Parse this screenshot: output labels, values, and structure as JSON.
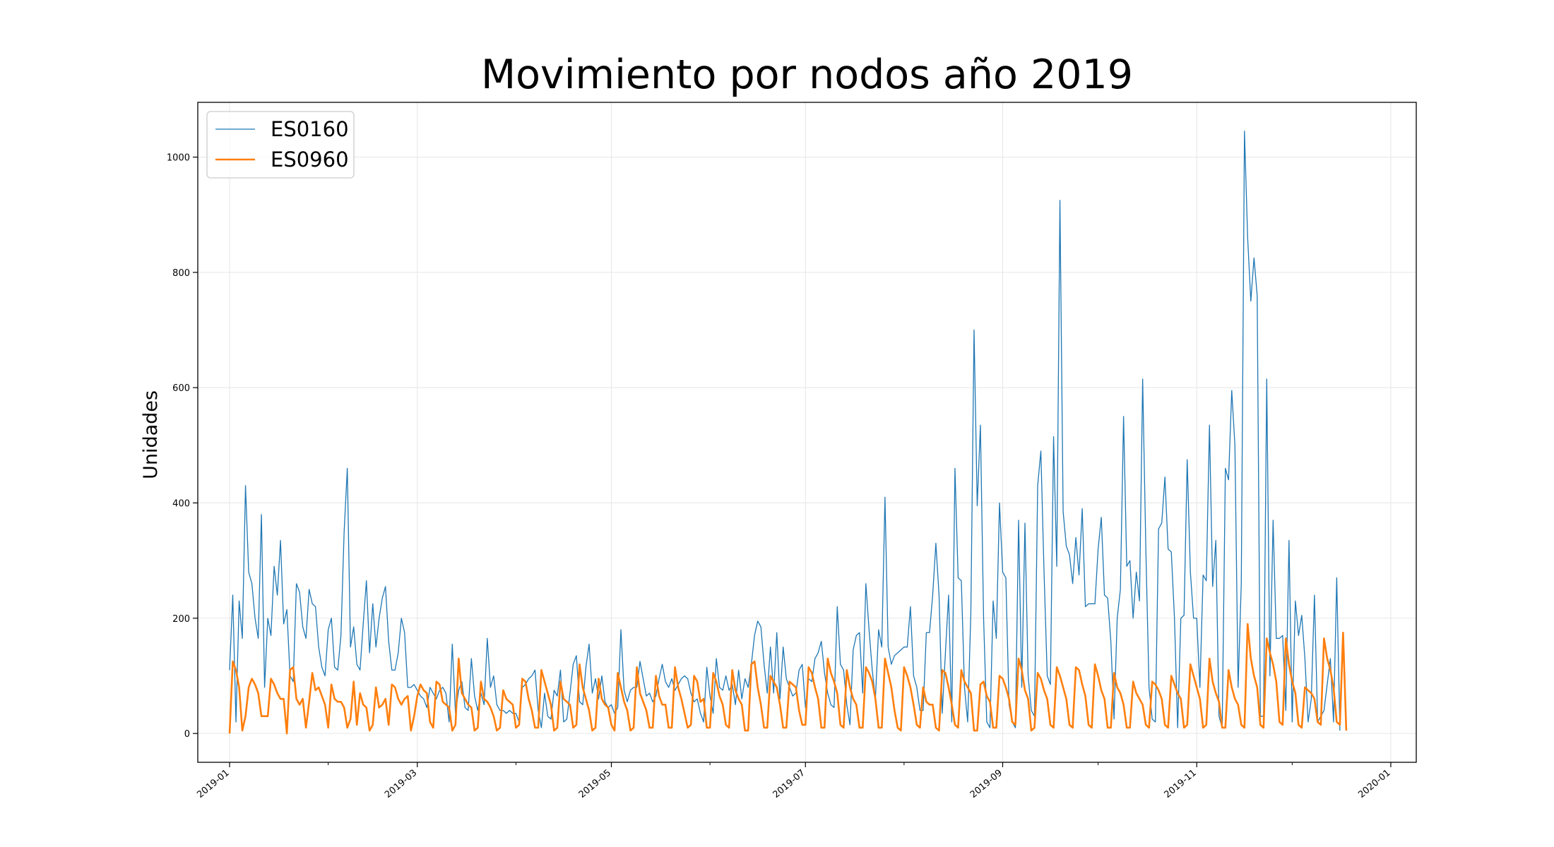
{
  "chart_data": {
    "type": "line",
    "title": "Movimiento por nodos año 2019",
    "xlabel": "",
    "ylabel": "Unidades",
    "xlim": [
      "2018-12-22",
      "2020-01-09"
    ],
    "ylim": [
      -50,
      1095
    ],
    "grid": true,
    "legend_position": "top-left",
    "x_tick_labels": [
      "2019-01",
      "2019-03",
      "2019-05",
      "2019-07",
      "2019-09",
      "2019-11",
      "2020-01"
    ],
    "y_tick_labels": [
      "0",
      "200",
      "400",
      "600",
      "800",
      "1000"
    ],
    "x_start": "2019-01-01",
    "series": [
      {
        "name": "ES0160",
        "color": "#1f77b4",
        "values": [
          110,
          240,
          20,
          230,
          165,
          430,
          280,
          260,
          200,
          165,
          380,
          80,
          200,
          170,
          290,
          240,
          335,
          190,
          215,
          100,
          90,
          260,
          245,
          185,
          165,
          250,
          225,
          220,
          150,
          115,
          100,
          180,
          200,
          115,
          110,
          170,
          350,
          460,
          150,
          185,
          120,
          110,
          190,
          265,
          140,
          225,
          150,
          200,
          235,
          255,
          160,
          110,
          110,
          140,
          200,
          175,
          80,
          80,
          85,
          75,
          65,
          60,
          45,
          80,
          70,
          60,
          75,
          80,
          70,
          20,
          155,
          35,
          75,
          90,
          45,
          40,
          130,
          65,
          40,
          70,
          50,
          165,
          80,
          100,
          50,
          40,
          40,
          35,
          40,
          35,
          35,
          20,
          80,
          85,
          95,
          100,
          110,
          40,
          10,
          70,
          30,
          25,
          75,
          65,
          110,
          20,
          25,
          70,
          120,
          135,
          55,
          50,
          115,
          155,
          70,
          95,
          60,
          100,
          55,
          45,
          50,
          35,
          45,
          180,
          75,
          55,
          75,
          80,
          80,
          125,
          95,
          65,
          70,
          55,
          65,
          95,
          120,
          90,
          80,
          95,
          75,
          85,
          95,
          100,
          95,
          70,
          55,
          60,
          35,
          20,
          115,
          65,
          35,
          130,
          80,
          75,
          100,
          75,
          85,
          50,
          110,
          60,
          95,
          80,
          120,
          170,
          195,
          185,
          120,
          70,
          150,
          70,
          175,
          60,
          150,
          95,
          80,
          65,
          70,
          110,
          120,
          45,
          95,
          90,
          130,
          140,
          160,
          105,
          70,
          50,
          45,
          220,
          120,
          110,
          50,
          15,
          145,
          170,
          175,
          70,
          260,
          180,
          110,
          60,
          180,
          150,
          410,
          150,
          120,
          135,
          140,
          145,
          150,
          150,
          220,
          100,
          80,
          40,
          40,
          175,
          175,
          240,
          330,
          240,
          35,
          140,
          240,
          20,
          460,
          270,
          265,
          80,
          20,
          210,
          700,
          395,
          535,
          200,
          20,
          10,
          230,
          165,
          400,
          280,
          270,
          50,
          20,
          10,
          370,
          80,
          365,
          100,
          40,
          30,
          430,
          490,
          280,
          100,
          85,
          515,
          290,
          925,
          385,
          325,
          310,
          260,
          340,
          275,
          390,
          220,
          225,
          225,
          225,
          320,
          375,
          240,
          235,
          160,
          25,
          200,
          250,
          550,
          290,
          300,
          200,
          280,
          230,
          615,
          320,
          80,
          25,
          20,
          355,
          365,
          445,
          320,
          315,
          200,
          10,
          200,
          205,
          475,
          280,
          200,
          200,
          80,
          275,
          265,
          535,
          255,
          335,
          30,
          10,
          460,
          440,
          595,
          500,
          80,
          260,
          1045,
          860,
          750,
          825,
          760,
          30,
          30,
          615,
          100,
          370,
          165,
          165,
          170,
          40,
          335,
          20,
          230,
          170,
          205,
          130,
          20,
          60,
          240,
          20,
          30,
          40,
          85,
          130,
          20,
          270,
          5
        ]
      },
      {
        "name": "ES0960",
        "color": "#ff7f0e",
        "values": [
          0,
          125,
          110,
          80,
          5,
          30,
          80,
          95,
          85,
          70,
          30,
          30,
          30,
          95,
          85,
          70,
          60,
          60,
          0,
          110,
          115,
          60,
          50,
          60,
          10,
          55,
          105,
          75,
          80,
          65,
          50,
          10,
          85,
          60,
          55,
          55,
          45,
          10,
          25,
          90,
          15,
          70,
          50,
          45,
          5,
          15,
          80,
          45,
          50,
          60,
          15,
          85,
          80,
          60,
          50,
          60,
          65,
          5,
          30,
          65,
          85,
          75,
          70,
          20,
          10,
          90,
          85,
          55,
          50,
          45,
          5,
          15,
          130,
          70,
          60,
          50,
          45,
          5,
          10,
          90,
          60,
          55,
          45,
          30,
          5,
          10,
          75,
          60,
          55,
          50,
          10,
          15,
          95,
          90,
          60,
          40,
          10,
          10,
          110,
          90,
          70,
          50,
          5,
          10,
          90,
          60,
          55,
          50,
          10,
          15,
          120,
          80,
          60,
          40,
          5,
          10,
          95,
          60,
          50,
          45,
          15,
          5,
          105,
          80,
          55,
          40,
          5,
          10,
          115,
          70,
          55,
          40,
          10,
          10,
          100,
          65,
          50,
          50,
          10,
          10,
          115,
          80,
          60,
          35,
          10,
          15,
          100,
          90,
          55,
          60,
          10,
          10,
          105,
          90,
          65,
          50,
          15,
          10,
          110,
          75,
          60,
          50,
          5,
          5,
          120,
          125,
          80,
          50,
          10,
          10,
          100,
          90,
          80,
          50,
          10,
          10,
          90,
          85,
          80,
          40,
          15,
          15,
          115,
          105,
          80,
          60,
          10,
          10,
          130,
          105,
          90,
          70,
          15,
          10,
          110,
          80,
          60,
          50,
          10,
          10,
          115,
          105,
          90,
          60,
          10,
          10,
          130,
          105,
          80,
          40,
          10,
          5,
          115,
          100,
          80,
          50,
          15,
          10,
          80,
          55,
          50,
          50,
          10,
          5,
          110,
          105,
          80,
          50,
          15,
          10,
          110,
          90,
          80,
          70,
          5,
          5,
          85,
          90,
          65,
          55,
          10,
          10,
          100,
          95,
          80,
          60,
          20,
          15,
          130,
          110,
          75,
          60,
          5,
          10,
          105,
          95,
          75,
          60,
          15,
          10,
          115,
          100,
          80,
          60,
          15,
          10,
          115,
          110,
          85,
          65,
          15,
          10,
          120,
          100,
          75,
          60,
          10,
          10,
          105,
          80,
          70,
          50,
          10,
          10,
          90,
          70,
          60,
          50,
          15,
          10,
          90,
          85,
          75,
          60,
          15,
          10,
          100,
          85,
          70,
          60,
          10,
          15,
          120,
          100,
          80,
          60,
          10,
          15,
          130,
          90,
          70,
          55,
          10,
          10,
          110,
          80,
          60,
          50,
          15,
          10,
          190,
          130,
          100,
          80,
          15,
          10,
          165,
          140,
          120,
          90,
          20,
          15,
          165,
          120,
          90,
          70,
          15,
          10,
          80,
          75,
          70,
          60,
          20,
          15,
          165,
          130,
          110,
          80,
          20,
          15,
          175,
          5
        ]
      }
    ]
  }
}
